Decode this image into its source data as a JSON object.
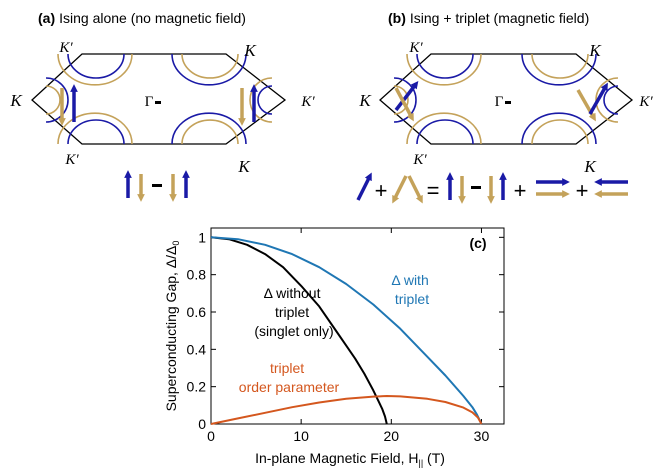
{
  "panel_a": {
    "letter": "(a)",
    "title": "Ising alone (no magnetic field)",
    "labels": {
      "k_top_left": "K′",
      "k_top_right": "K",
      "k_left": "K",
      "k_right": "K′",
      "k_bottom_left": "K′",
      "k_bottom_right": "K",
      "gamma": "Γ"
    }
  },
  "panel_b": {
    "letter": "(b)",
    "title": "Ising + triplet (magnetic field)",
    "labels": {
      "k_top_left": "K′",
      "k_top_right": "K",
      "k_left": "K",
      "k_right": "K′",
      "k_bottom_left": "K′",
      "k_bottom_right": "K",
      "gamma": "Γ"
    },
    "equation": {
      "plus": "+",
      "equals": "="
    }
  },
  "colors": {
    "blue": "#1a1aa6",
    "gold": "#c4a25a",
    "singlet": "#000000",
    "with_triplet": "#1f77b4",
    "triplet": "#d4571e"
  },
  "chart_data": {
    "type": "line",
    "panel_label": "(c)",
    "xlabel": "In-plane Magnetic Field, H",
    "xlabel_sub": "||",
    "xlabel_unit": " (T)",
    "ylabel": "Superconducting Gap, Δ/Δ",
    "ylabel_sub": "0",
    "xlim": [
      0,
      32.5
    ],
    "ylim": [
      0,
      1.05
    ],
    "xticks": [
      0,
      10,
      20,
      30
    ],
    "yticks": [
      0,
      0.2,
      0.4,
      0.6,
      0.8,
      1
    ],
    "ytick_labels": [
      "0",
      "0.2",
      "0.4",
      "0.6",
      "0.8",
      "1"
    ],
    "grid": false,
    "series": [
      {
        "key": "singlet",
        "color_key": "singlet",
        "x": [
          0,
          2,
          4,
          6,
          8,
          10,
          12,
          14,
          15,
          16,
          17,
          18,
          18.5,
          19,
          19.3,
          19.5
        ],
        "y": [
          1,
          0.99,
          0.96,
          0.91,
          0.84,
          0.74,
          0.63,
          0.49,
          0.42,
          0.35,
          0.27,
          0.18,
          0.13,
          0.08,
          0.04,
          0
        ]
      },
      {
        "key": "with_triplet",
        "color_key": "with_triplet",
        "x": [
          0,
          3,
          6,
          9,
          12,
          15,
          18,
          21,
          24,
          26,
          28,
          29,
          29.5,
          29.8,
          30
        ],
        "y": [
          1,
          0.99,
          0.96,
          0.91,
          0.84,
          0.75,
          0.64,
          0.51,
          0.36,
          0.26,
          0.15,
          0.09,
          0.05,
          0.02,
          0
        ]
      },
      {
        "key": "triplet",
        "color_key": "triplet",
        "x": [
          0,
          3,
          6,
          9,
          12,
          15,
          18,
          19.5,
          21,
          24,
          26,
          28,
          29,
          29.6,
          30
        ],
        "y": [
          0,
          0.03,
          0.06,
          0.09,
          0.115,
          0.135,
          0.147,
          0.15,
          0.148,
          0.135,
          0.118,
          0.088,
          0.062,
          0.035,
          0
        ]
      }
    ],
    "annotations": [
      {
        "key": "singlet",
        "lines": [
          "Δ without",
          "triplet",
          "(singlet only)"
        ]
      },
      {
        "key": "with_triplet",
        "lines": [
          "Δ with",
          "triplet"
        ]
      },
      {
        "key": "triplet",
        "lines": [
          "triplet",
          "order parameter"
        ]
      }
    ]
  }
}
